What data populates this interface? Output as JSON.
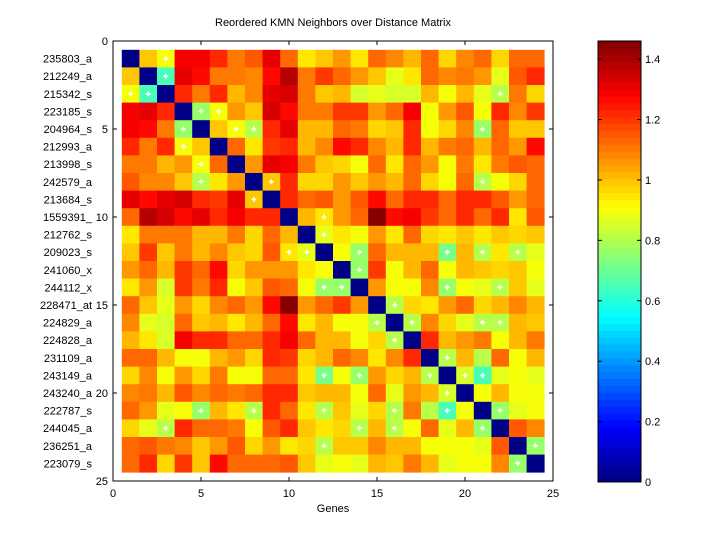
{
  "chart_data": {
    "type": "heatmap",
    "title": "Reordered KMN Neighbors over Distance Matrix",
    "xlabel": "Genes",
    "ylabel": "",
    "xlim": [
      0,
      25
    ],
    "ylim": [
      0,
      25
    ],
    "x_ticks": [
      "0",
      "5",
      "10",
      "15",
      "20",
      "25"
    ],
    "y_ticks": [
      "0",
      "5",
      "10",
      "15",
      "20",
      "25"
    ],
    "row_labels": [
      "235803_a",
      "212249_a",
      "215342_s",
      "223185_s",
      "204964_s",
      "212993_a",
      "213998_s",
      "242579_a",
      "213684_s",
      "1559391_",
      "212762_s",
      "209023_s",
      "241060_x",
      "244112_x",
      "228471_at",
      "224829_a",
      "224828_a",
      "231109_a",
      "243149_a",
      "243240_a",
      "222787_s",
      "244045_a",
      "236251_a",
      "223079_s"
    ],
    "symmetric": true,
    "diagonal": 0,
    "upper_triangle": [
      [
        1.0,
        0.91,
        1.28,
        1.3,
        1.23,
        1.1,
        1.15,
        1.31,
        1.14,
        0.95,
        1.0,
        1.05,
        0.94,
        1.14,
        1.08,
        1.02,
        1.12,
        0.97,
        1.08,
        1.12,
        0.97,
        1.14,
        1.14
      ],
      [
        0.64,
        1.31,
        1.26,
        1.1,
        1.1,
        1.08,
        1.26,
        1.39,
        1.1,
        1.19,
        1.12,
        1.05,
        1.0,
        0.87,
        0.95,
        1.12,
        1.08,
        1.1,
        1.05,
        0.87,
        1.15,
        1.21
      ],
      [
        1.23,
        1.1,
        1.21,
        1.02,
        1.08,
        1.31,
        1.33,
        1.1,
        1.0,
        1.02,
        0.85,
        0.87,
        0.85,
        0.85,
        1.02,
        0.91,
        1.02,
        0.87,
        0.8,
        1.1,
        0.97
      ],
      [
        0.77,
        0.91,
        1.05,
        1.0,
        1.33,
        1.26,
        1.1,
        1.1,
        1.19,
        1.19,
        1.05,
        1.14,
        1.3,
        0.91,
        1.05,
        1.15,
        0.89,
        1.21,
        1.08,
        1.19
      ],
      [
        1.0,
        0.89,
        0.82,
        1.23,
        1.31,
        1.02,
        1.02,
        1.12,
        1.1,
        0.96,
        1.0,
        1.23,
        0.89,
        0.97,
        1.08,
        0.77,
        1.12,
        1.0,
        1.0
      ],
      [
        1.14,
        0.94,
        1.19,
        1.23,
        1.02,
        1.08,
        1.26,
        1.23,
        1.08,
        1.02,
        1.21,
        1.02,
        1.1,
        1.14,
        1.02,
        1.12,
        1.05,
        1.26
      ],
      [
        1.05,
        1.31,
        1.28,
        1.1,
        1.0,
        0.96,
        0.91,
        1.12,
        0.95,
        1.12,
        1.05,
        0.89,
        1.1,
        0.95,
        1.1,
        1.15,
        1.12
      ],
      [
        1.0,
        1.21,
        0.98,
        0.98,
        1.05,
        1.0,
        1.05,
        1.02,
        1.12,
        0.97,
        0.89,
        1.12,
        0.82,
        0.89,
        0.97,
        1.12
      ],
      [
        1.21,
        1.14,
        1.15,
        1.05,
        1.15,
        1.26,
        1.12,
        1.21,
        1.21,
        1.14,
        1.21,
        1.23,
        1.15,
        1.05,
        1.12
      ],
      [
        1.02,
        0.94,
        1.05,
        1.12,
        1.46,
        1.26,
        1.3,
        1.19,
        1.14,
        1.21,
        1.12,
        1.23,
        0.94,
        1.15
      ],
      [
        0.87,
        0.94,
        0.89,
        1.05,
        0.94,
        1.14,
        0.97,
        0.95,
        1.0,
        0.94,
        1.0,
        0.98,
        1.0
      ],
      [
        0.89,
        0.77,
        1.12,
        1.02,
        1.02,
        1.02,
        0.73,
        1.02,
        0.82,
        0.94,
        0.82,
        0.87
      ],
      [
        0.77,
        1.19,
        0.91,
        1.02,
        1.12,
        0.89,
        1.02,
        1.0,
        0.97,
        1.0,
        0.89
      ],
      [
        1.05,
        0.89,
        0.91,
        1.08,
        0.77,
        0.89,
        0.87,
        0.82,
        1.0,
        0.87
      ],
      [
        0.82,
        0.97,
        0.95,
        1.05,
        1.12,
        0.96,
        1.02,
        1.08,
        1.02
      ],
      [
        0.82,
        1.08,
        0.97,
        0.87,
        0.82,
        0.82,
        1.02,
        1.0
      ],
      [
        1.23,
        1.02,
        1.05,
        1.1,
        0.91,
        1.02,
        1.1
      ],
      [
        0.82,
        1.02,
        0.82,
        1.12,
        0.91,
        1.02
      ],
      [
        0.85,
        0.66,
        0.87,
        0.91,
        0.88
      ],
      [
        0.91,
        1.02,
        0.91,
        0.91
      ],
      [
        0.77,
        0.87,
        0.89
      ],
      [
        1.15,
        1.08
      ],
      [
        0.77
      ]
    ],
    "neighbor_pairs": [
      [
        1,
        3
      ],
      [
        2,
        3
      ],
      [
        3,
        22
      ],
      [
        4,
        5
      ],
      [
        4,
        6
      ],
      [
        5,
        7
      ],
      [
        5,
        8
      ],
      [
        5,
        21
      ],
      [
        8,
        9
      ],
      [
        8,
        21
      ],
      [
        10,
        12
      ],
      [
        11,
        12
      ],
      [
        12,
        14
      ],
      [
        12,
        19
      ],
      [
        12,
        21
      ],
      [
        12,
        23
      ],
      [
        13,
        14
      ],
      [
        14,
        19
      ],
      [
        14,
        22
      ],
      [
        15,
        16
      ],
      [
        16,
        17
      ],
      [
        16,
        21
      ],
      [
        16,
        22
      ],
      [
        18,
        19
      ],
      [
        19,
        20
      ],
      [
        19,
        21
      ],
      [
        21,
        22
      ],
      [
        23,
        24
      ]
    ],
    "colorbar": {
      "colormap": "jet",
      "range": [
        0,
        1.46
      ],
      "ticks": [
        "0",
        "0.2",
        "0.4",
        "0.6",
        "0.8",
        "1",
        "1.2",
        "1.4"
      ]
    },
    "grid": false
  }
}
